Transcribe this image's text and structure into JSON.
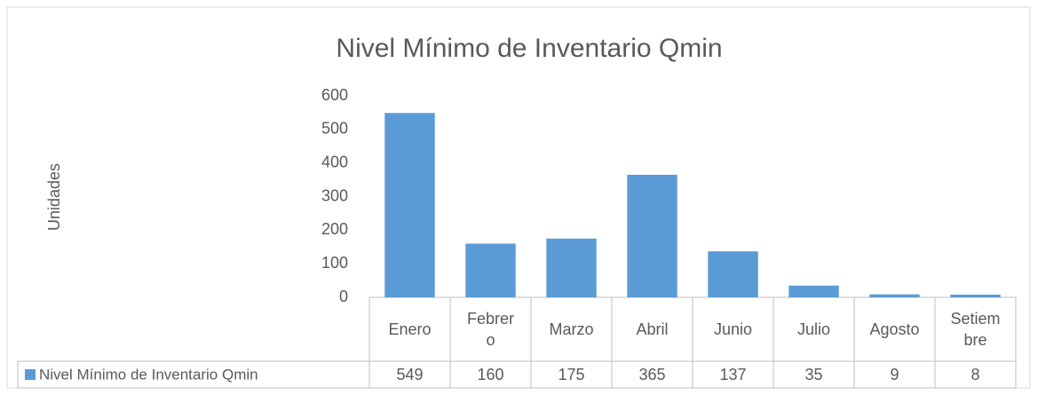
{
  "chart_data": {
    "type": "bar",
    "title": "Nivel Mínimo de Inventario Qmin",
    "y_label": "Unidades",
    "categories": [
      "Enero",
      "Febrero",
      "Marzo",
      "Abril",
      "Junio",
      "Julio",
      "Agosto",
      "Setiembre"
    ],
    "series": [
      {
        "name": "Nivel Mínimo de Inventario Qmin",
        "color": "#5b9bd5",
        "values": [
          549,
          160,
          175,
          365,
          137,
          35,
          9,
          8
        ]
      }
    ],
    "ylim": [
      0,
      600
    ],
    "yticks": [
      0,
      100,
      200,
      300,
      400,
      500,
      600
    ],
    "grid": false,
    "data_table": true
  }
}
